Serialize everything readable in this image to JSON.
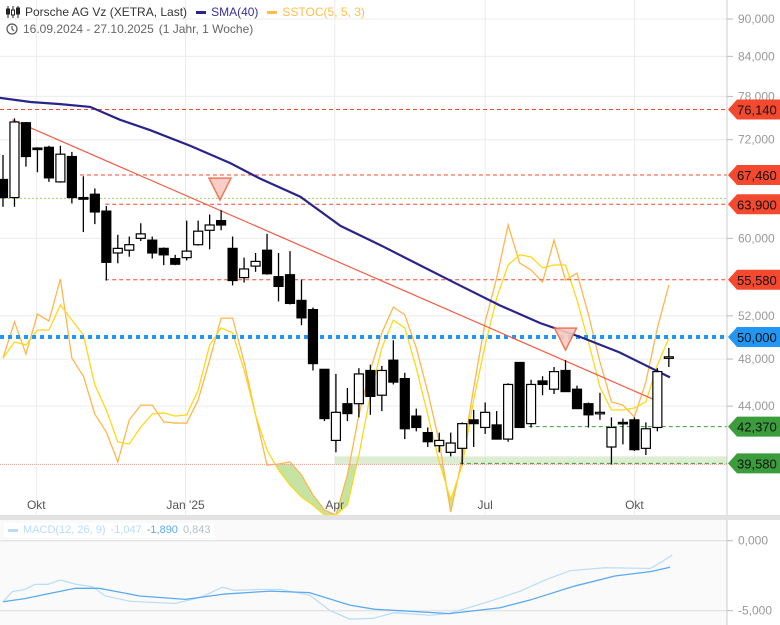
{
  "header": {
    "instrument": "Porsche AG Vz (XETRA, Last)",
    "sma_label": "SMA(40)",
    "stoc_label": "SSTOC(5, 5, 3)",
    "date_range": "16.09.2024 - 27.10.2025",
    "period": "(1 Jahr, 1 Woche)"
  },
  "colors": {
    "sma": "#2b2488",
    "stoc_fast": "#ffb74d",
    "stoc_slow": "#ffd81a",
    "trend": "#f25c45",
    "resistance": "#f4492e",
    "support": "#3a9c3a",
    "level": "#2196f3",
    "macd": "#5aaaf0",
    "macd_signal": "#b9dcf8"
  },
  "chart_data": {
    "type": "candlestick",
    "price_unit": "thousand EUR",
    "y_ticks": [
      "90,000",
      "84,000",
      "78,000",
      "72,000",
      "60,000",
      "52,000",
      "48,000",
      "44,000"
    ],
    "y_tick_values": [
      90,
      84,
      78,
      72,
      60,
      52,
      48,
      44
    ],
    "x_ticks": [
      {
        "label": "Okt",
        "index": 2.9
      },
      {
        "label": "Jan '25",
        "index": 15.9
      },
      {
        "label": "Apr",
        "index": 28.9
      },
      {
        "label": "Jul",
        "index": 42
      },
      {
        "label": "Okt",
        "index": 55
      }
    ],
    "candles_ohlc": [
      [
        66.9,
        70.0,
        63.6,
        64.7
      ],
      [
        64.7,
        74.9,
        63.6,
        74.4
      ],
      [
        74.3,
        74.4,
        68.5,
        69.8
      ],
      [
        70.9,
        71.0,
        67.8,
        70.8
      ],
      [
        71.0,
        71.2,
        66.6,
        67.1
      ],
      [
        66.6,
        71.2,
        66.5,
        70.1
      ],
      [
        69.8,
        70.4,
        64.0,
        64.7
      ],
      [
        64.7,
        67.3,
        60.7,
        64.5
      ],
      [
        65.1,
        65.8,
        61.6,
        63.0
      ],
      [
        63.1,
        63.7,
        55.5,
        57.4
      ],
      [
        58.4,
        60.4,
        57.3,
        58.9
      ],
      [
        58.7,
        60.2,
        58.0,
        59.3
      ],
      [
        60.0,
        61.7,
        59.7,
        60.5
      ],
      [
        59.8,
        60.2,
        57.8,
        58.4
      ],
      [
        58.9,
        59.0,
        57.1,
        58.2
      ],
      [
        57.8,
        58.2,
        57.1,
        57.2
      ],
      [
        57.9,
        62.0,
        57.6,
        58.6
      ],
      [
        59.3,
        62.0,
        59.2,
        60.8
      ],
      [
        60.9,
        62.7,
        58.8,
        61.5
      ],
      [
        62.0,
        63.2,
        60.9,
        61.5
      ],
      [
        58.9,
        60.2,
        55.0,
        55.5
      ],
      [
        55.8,
        57.9,
        55.3,
        56.7
      ],
      [
        57.0,
        58.4,
        56.4,
        57.5
      ],
      [
        58.7,
        60.5,
        56.1,
        56.2
      ],
      [
        55.9,
        58.4,
        53.4,
        54.9
      ],
      [
        56.1,
        58.6,
        53.1,
        53.2
      ],
      [
        53.5,
        55.6,
        51.1,
        51.8
      ],
      [
        52.6,
        52.8,
        47.0,
        47.6
      ],
      [
        47.1,
        47.1,
        42.8,
        43.0
      ],
      [
        41.3,
        46.7,
        40.4,
        43.5
      ],
      [
        44.2,
        45.5,
        42.8,
        43.4
      ],
      [
        44.2,
        47.2,
        43.1,
        46.7
      ],
      [
        47.0,
        47.5,
        43.3,
        44.8
      ],
      [
        44.9,
        47.4,
        43.6,
        47.0
      ],
      [
        47.9,
        49.7,
        45.8,
        46.0
      ],
      [
        46.3,
        46.8,
        41.4,
        42.2
      ],
      [
        43.2,
        43.8,
        42.0,
        42.3
      ],
      [
        41.9,
        42.3,
        40.8,
        41.2
      ],
      [
        40.9,
        41.9,
        40.4,
        41.3
      ],
      [
        40.4,
        41.9,
        40.1,
        41.1
      ],
      [
        40.7,
        42.7,
        39.5,
        42.6
      ],
      [
        42.9,
        43.7,
        40.8,
        42.6
      ],
      [
        42.3,
        44.3,
        41.8,
        43.5
      ],
      [
        42.5,
        43.6,
        41.4,
        41.4
      ],
      [
        41.4,
        45.9,
        41.2,
        45.8
      ],
      [
        47.7,
        47.7,
        42.3,
        42.3
      ],
      [
        42.6,
        46.2,
        42.3,
        45.8
      ],
      [
        46.1,
        46.5,
        44.9,
        45.8
      ],
      [
        45.4,
        47.3,
        45.0,
        46.9
      ],
      [
        47.0,
        47.9,
        45.2,
        45.2
      ],
      [
        45.4,
        45.7,
        43.8,
        43.8
      ],
      [
        44.2,
        44.3,
        42.3,
        43.3
      ],
      [
        43.5,
        45.1,
        42.9,
        43.5
      ],
      [
        40.8,
        43.1,
        39.5,
        42.3
      ],
      [
        42.7,
        43.0,
        41.0,
        42.6
      ],
      [
        42.9,
        43.1,
        40.5,
        40.6
      ],
      [
        40.7,
        42.7,
        40.2,
        42.2
      ],
      [
        42.3,
        47.2,
        42.0,
        46.9
      ],
      [
        48.1,
        49.0,
        47.3,
        48.2
      ]
    ],
    "sma40": [
      [
        -0.3,
        77.8
      ],
      [
        2.4,
        77.2
      ],
      [
        5,
        76.9
      ],
      [
        7.6,
        76.5
      ],
      [
        10.2,
        74.7
      ],
      [
        12.8,
        73.3
      ],
      [
        16.3,
        71.2
      ],
      [
        19.8,
        68.95
      ],
      [
        22.4,
        67.0
      ],
      [
        25.9,
        64.8
      ],
      [
        29.4,
        61.4
      ],
      [
        32.8,
        59.3
      ],
      [
        36.3,
        57.1
      ],
      [
        39.8,
        55.0
      ],
      [
        43.3,
        53.0
      ],
      [
        46.8,
        51.3
      ],
      [
        50.3,
        50.0
      ],
      [
        53.7,
        48.6
      ],
      [
        58.1,
        46.4
      ]
    ],
    "stoc_fast": [
      54.1,
      66.6,
      55.5,
      69.3,
      66.9,
      81.4,
      54.1,
      47.9,
      34.8,
      28.6,
      18.3,
      32.8,
      37.9,
      37.9,
      32.1,
      31.7,
      31.7,
      39.7,
      53.4,
      67.9,
      67.9,
      52.8,
      34.5,
      17.2,
      17.6,
      18.3,
      13.8,
      6.9,
      1.7,
      0,
      13.8,
      34.5,
      50,
      62.8,
      71.7,
      69.0,
      57.6,
      42.4,
      25.2,
      1.0,
      19.7,
      43.8,
      66.6,
      81.7,
      100,
      86.9,
      84.5,
      80.3,
      94.8,
      81.0,
      83.4,
      69.0,
      52.8,
      39.0,
      37.9,
      33.8,
      45.9,
      64.5,
      79.3
    ],
    "stoc_slow": [
      54.1,
      59.7,
      58.6,
      63.8,
      63.8,
      72.4,
      67.2,
      62.1,
      44.8,
      36.2,
      25.2,
      24.5,
      30.3,
      34.8,
      35.2,
      34.1,
      34.5,
      43.1,
      58.6,
      64.5,
      62.8,
      50.0,
      34.5,
      22.4,
      15.5,
      10.3,
      6.2,
      3.4,
      0,
      0,
      3.4,
      20.7,
      41.4,
      57.6,
      67.2,
      64.5,
      50.7,
      34.5,
      18.3,
      5.2,
      17.2,
      39.7,
      58.6,
      74.8,
      86.2,
      89.7,
      89.0,
      85.2,
      86.2,
      86.2,
      74.1,
      59.7,
      44.1,
      36.2,
      36.2,
      36.9,
      39.0,
      51.7,
      61.0
    ],
    "trendline": [
      [
        0.8,
        74.7
      ],
      [
        56.8,
        44.5
      ]
    ],
    "signals": [
      {
        "type": "sell",
        "index": 18.9,
        "price": 64.4
      },
      {
        "type": "sell",
        "index": 49.0,
        "price": 48.8
      }
    ],
    "levels": [
      {
        "value": 76.14,
        "label": "76,140",
        "kind": "resistance",
        "from": -1
      },
      {
        "value": 67.46,
        "label": "67,460",
        "kind": "resistance",
        "from": 6.7
      },
      {
        "value": 63.9,
        "label": "63,900",
        "kind": "resistance",
        "from": 8.9
      },
      {
        "value": 55.58,
        "label": "55,580",
        "kind": "resistance",
        "from": 8.9
      },
      {
        "value": 50.0,
        "label": "50,000",
        "kind": "level",
        "from": -1
      },
      {
        "value": 42.37,
        "label": "42,370",
        "kind": "support",
        "from": 45.8
      },
      {
        "value": 39.58,
        "label": "39,580",
        "kind": "support",
        "from": 39.8
      }
    ],
    "support_zone": {
      "from_index": 28.9,
      "low": 39.55,
      "high": 40.1
    },
    "green_dotted_level": 64.6,
    "macd": {
      "legend": "MACD(12, 26, 9)",
      "macd_value": "-1,047",
      "signal_value": "-1,890",
      "histogram_value": "0,843",
      "y_ticks": [
        "0,000",
        "-5,000"
      ],
      "y_tick_values": [
        0,
        -5
      ],
      "macd_line": [
        [
          0,
          -4.36
        ],
        [
          0.8,
          -3.64
        ],
        [
          1.9,
          -3.48
        ],
        [
          2.8,
          -3.12
        ],
        [
          3.9,
          -3.12
        ],
        [
          5.0,
          -2.81
        ],
        [
          6.3,
          -3.1
        ],
        [
          7.8,
          -3.29
        ],
        [
          8.9,
          -3.95
        ],
        [
          11.1,
          -4.33
        ],
        [
          15.0,
          -4.48
        ],
        [
          17.2,
          -4.05
        ],
        [
          19.1,
          -3.33
        ],
        [
          20.2,
          -3.55
        ],
        [
          22.4,
          -3.48
        ],
        [
          24.1,
          -3.48
        ],
        [
          26.7,
          -3.88
        ],
        [
          28.5,
          -5.0
        ],
        [
          30.2,
          -5.6
        ],
        [
          32.2,
          -5.55
        ],
        [
          34.1,
          -5.14
        ],
        [
          37.2,
          -5.33
        ],
        [
          38.9,
          -5.19
        ],
        [
          42.4,
          -4.33
        ],
        [
          45.0,
          -3.62
        ],
        [
          47.2,
          -2.81
        ],
        [
          49.4,
          -2.14
        ],
        [
          52.4,
          -1.93
        ],
        [
          56.4,
          -1.98
        ],
        [
          57.4,
          -1.5
        ],
        [
          58.3,
          -1.02
        ]
      ],
      "signal_line": [
        [
          0,
          -4.36
        ],
        [
          1.9,
          -4.14
        ],
        [
          4.1,
          -3.76
        ],
        [
          6.3,
          -3.4
        ],
        [
          8.4,
          -3.4
        ],
        [
          11.9,
          -3.95
        ],
        [
          15.9,
          -4.19
        ],
        [
          19.3,
          -3.81
        ],
        [
          23.3,
          -3.6
        ],
        [
          26.7,
          -3.71
        ],
        [
          30.2,
          -4.6
        ],
        [
          32.4,
          -4.9
        ],
        [
          34.6,
          -5.0
        ],
        [
          38.9,
          -5.21
        ],
        [
          43.3,
          -4.79
        ],
        [
          45.9,
          -4.24
        ],
        [
          49.8,
          -3.24
        ],
        [
          53.3,
          -2.52
        ],
        [
          56.4,
          -2.21
        ],
        [
          58.1,
          -1.9
        ]
      ]
    }
  }
}
